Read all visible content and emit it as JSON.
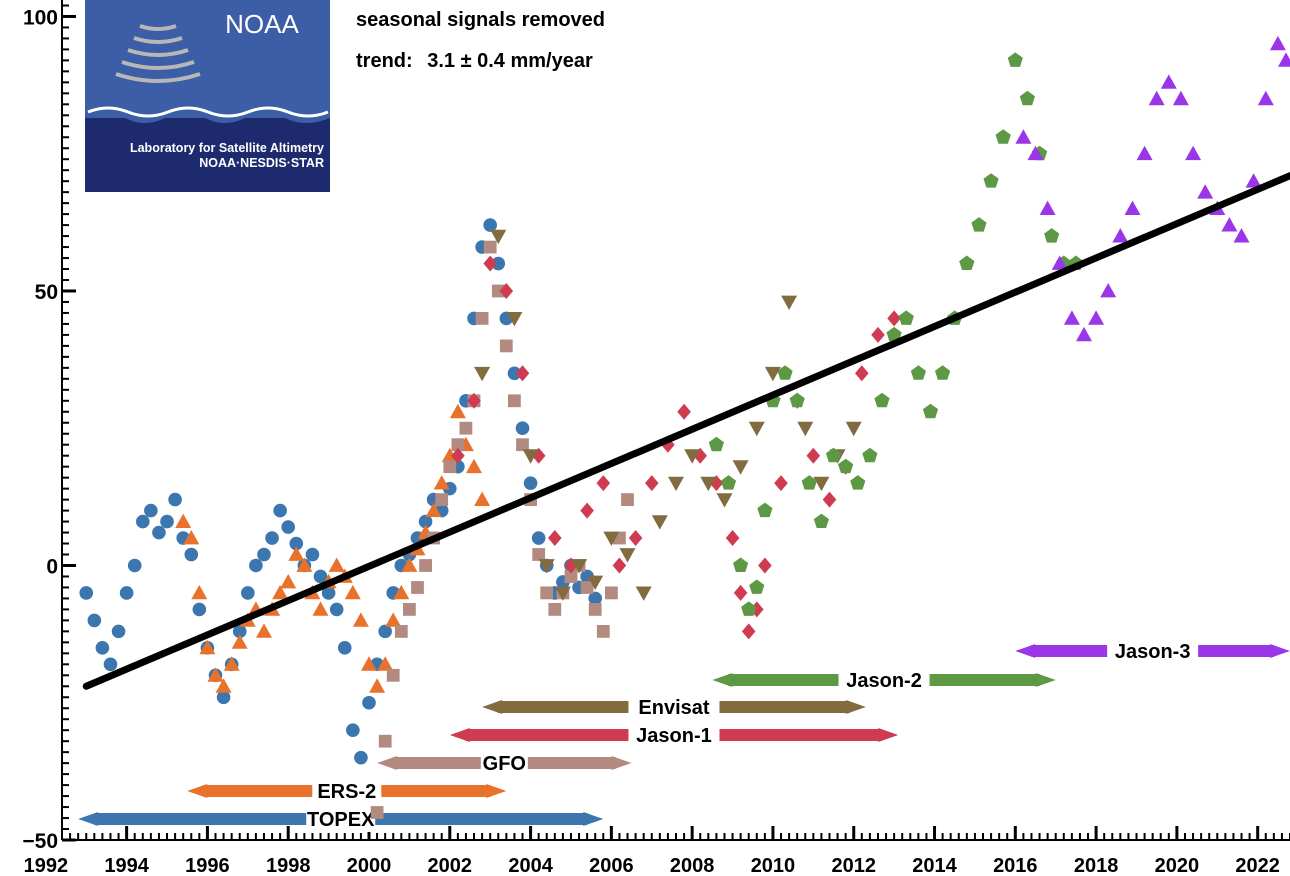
{
  "chart_data": {
    "type": "scatter",
    "title": "",
    "xlabel": "",
    "ylabel": "",
    "xlim": [
      1992.4,
      2022.8
    ],
    "ylim": [
      -50,
      103
    ],
    "x_ticks": [
      "1992",
      "1994",
      "1996",
      "1998",
      "2000",
      "2002",
      "2004",
      "2006",
      "2008",
      "2010",
      "2012",
      "2014",
      "2016",
      "2018",
      "2020",
      "2022"
    ],
    "y_ticks": [
      "−50",
      "0",
      "50",
      "100"
    ],
    "y_tick_values": [
      -50,
      0,
      50,
      100
    ],
    "annotations": {
      "line1": "seasonal signals removed",
      "line2_prefix": "trend:",
      "line2_value": "3.1 ± 0.4 mm/year"
    },
    "logo": {
      "name": "NOAA",
      "org_line1": "Laboratory for Satellite Altimetry",
      "org_line2": "NOAA·NESDIS·STAR"
    },
    "trend_line": {
      "x": [
        1993.0,
        2022.8
      ],
      "y": [
        -22,
        71
      ],
      "color": "#000000"
    },
    "series": [
      {
        "name": "TOPEX",
        "color": "#3b76af",
        "marker": "circle",
        "mission_span": [
          1992.8,
          2005.8
        ],
        "x": [
          1993.0,
          1993.2,
          1993.4,
          1993.6,
          1993.8,
          1994.0,
          1994.2,
          1994.4,
          1994.6,
          1994.8,
          1995.0,
          1995.2,
          1995.4,
          1995.6,
          1995.8,
          1996.0,
          1996.2,
          1996.4,
          1996.6,
          1996.8,
          1997.0,
          1997.2,
          1997.4,
          1997.6,
          1997.8,
          1998.0,
          1998.2,
          1998.4,
          1998.6,
          1998.8,
          1999.0,
          1999.2,
          1999.4,
          1999.6,
          1999.8,
          2000.0,
          2000.2,
          2000.4,
          2000.6,
          2000.8,
          2001.0,
          2001.2,
          2001.4,
          2001.6,
          2001.8,
          2002.0,
          2002.2,
          2002.4,
          2002.6,
          2002.8,
          2003.0,
          2003.2,
          2003.4,
          2003.6,
          2003.8,
          2004.0,
          2004.2,
          2004.4,
          2004.6,
          2004.8,
          2005.0,
          2005.2,
          2005.4,
          2005.6
        ],
        "y": [
          -5,
          -10,
          -15,
          -18,
          -12,
          -5,
          0,
          8,
          10,
          6,
          8,
          12,
          5,
          2,
          -8,
          -15,
          -20,
          -24,
          -18,
          -12,
          -5,
          0,
          2,
          5,
          10,
          7,
          4,
          0,
          2,
          -2,
          -5,
          -8,
          -15,
          -30,
          -35,
          -25,
          -18,
          -12,
          -5,
          0,
          2,
          5,
          8,
          12,
          10,
          14,
          18,
          30,
          45,
          58,
          62,
          55,
          45,
          35,
          25,
          15,
          5,
          0,
          -5,
          -3,
          0,
          -4,
          -2,
          -6
        ]
      },
      {
        "name": "ERS-2",
        "color": "#e8712b",
        "marker": "triangle",
        "mission_span": [
          1995.5,
          2003.4
        ],
        "x": [
          1995.4,
          1995.6,
          1995.8,
          1996.0,
          1996.2,
          1996.4,
          1996.6,
          1996.8,
          1997.0,
          1997.2,
          1997.4,
          1997.6,
          1997.8,
          1998.0,
          1998.2,
          1998.4,
          1998.6,
          1998.8,
          1999.0,
          1999.2,
          1999.4,
          1999.6,
          1999.8,
          2000.0,
          2000.2,
          2000.4,
          2000.6,
          2000.8,
          2001.0,
          2001.2,
          2001.4,
          2001.6,
          2001.8,
          2002.0,
          2002.2,
          2002.4,
          2002.6,
          2002.8
        ],
        "y": [
          8,
          5,
          -5,
          -15,
          -20,
          -22,
          -18,
          -14,
          -10,
          -8,
          -12,
          -8,
          -5,
          -3,
          2,
          0,
          -5,
          -8,
          -3,
          0,
          -2,
          -5,
          -10,
          -18,
          -22,
          -18,
          -10,
          -5,
          0,
          3,
          6,
          10,
          15,
          20,
          28,
          22,
          18,
          12
        ]
      },
      {
        "name": "GFO",
        "color": "#b38a80",
        "marker": "square",
        "mission_span": [
          2000.2,
          2006.5
        ],
        "x": [
          2000.2,
          2000.4,
          2000.6,
          2000.8,
          2001.0,
          2001.2,
          2001.4,
          2001.6,
          2001.8,
          2002.0,
          2002.2,
          2002.4,
          2002.6,
          2002.8,
          2003.0,
          2003.2,
          2003.4,
          2003.6,
          2003.8,
          2004.0,
          2004.2,
          2004.4,
          2004.6,
          2004.8,
          2005.0,
          2005.2,
          2005.4,
          2005.6,
          2005.8,
          2006.0,
          2006.2,
          2006.4
        ],
        "y": [
          -45,
          -32,
          -20,
          -12,
          -8,
          -4,
          0,
          5,
          12,
          18,
          22,
          25,
          30,
          45,
          58,
          50,
          40,
          30,
          22,
          12,
          2,
          -5,
          -8,
          -5,
          -2,
          0,
          -4,
          -8,
          -12,
          -5,
          5,
          12
        ]
      },
      {
        "name": "Jason-1",
        "color": "#cf3b50",
        "marker": "diamond",
        "mission_span": [
          2002.0,
          2013.1
        ],
        "x": [
          2002.2,
          2002.6,
          2003.0,
          2003.4,
          2003.8,
          2004.2,
          2004.6,
          2005.0,
          2005.4,
          2005.8,
          2006.2,
          2006.6,
          2007.0,
          2007.4,
          2007.8,
          2008.2,
          2008.6,
          2009.0,
          2009.2,
          2009.4,
          2009.6,
          2009.8,
          2010.2,
          2010.6,
          2011.0,
          2011.4,
          2011.8,
          2012.2,
          2012.6,
          2013.0
        ],
        "y": [
          20,
          30,
          55,
          50,
          35,
          20,
          5,
          0,
          10,
          15,
          0,
          5,
          15,
          22,
          28,
          20,
          15,
          5,
          -5,
          -12,
          -8,
          0,
          15,
          30,
          20,
          12,
          18,
          35,
          42,
          45
        ]
      },
      {
        "name": "Envisat",
        "color": "#836b40",
        "marker": "triangle-down",
        "mission_span": [
          2002.8,
          2012.3
        ],
        "x": [
          2002.8,
          2003.2,
          2003.6,
          2004.0,
          2004.4,
          2004.8,
          2005.2,
          2005.6,
          2006.0,
          2006.4,
          2006.8,
          2007.2,
          2007.6,
          2008.0,
          2008.4,
          2008.8,
          2009.2,
          2009.6,
          2010.0,
          2010.4,
          2010.8,
          2011.2,
          2011.6,
          2012.0
        ],
        "y": [
          35,
          60,
          45,
          20,
          0,
          -5,
          0,
          -3,
          5,
          2,
          -5,
          8,
          15,
          20,
          15,
          12,
          18,
          25,
          35,
          48,
          25,
          15,
          20,
          25
        ]
      },
      {
        "name": "Jason-2",
        "color": "#5d9944",
        "marker": "pentagon",
        "mission_span": [
          2008.5,
          2017.0
        ],
        "x": [
          2008.6,
          2008.9,
          2009.2,
          2009.4,
          2009.6,
          2009.8,
          2010.0,
          2010.3,
          2010.6,
          2010.9,
          2011.2,
          2011.5,
          2011.8,
          2012.1,
          2012.4,
          2012.7,
          2013.0,
          2013.3,
          2013.6,
          2013.9,
          2014.2,
          2014.5,
          2014.8,
          2015.1,
          2015.4,
          2015.7,
          2016.0,
          2016.3,
          2016.6,
          2016.9,
          2017.2,
          2017.5
        ],
        "y": [
          22,
          15,
          0,
          -8,
          -4,
          10,
          30,
          35,
          30,
          15,
          8,
          20,
          18,
          15,
          20,
          30,
          42,
          45,
          35,
          28,
          35,
          45,
          55,
          62,
          70,
          78,
          92,
          85,
          75,
          60,
          55,
          55
        ]
      },
      {
        "name": "Jason-3",
        "color": "#9a35e8",
        "marker": "triangle",
        "mission_span": [
          2016.0,
          2022.8
        ],
        "x": [
          2016.2,
          2016.5,
          2016.8,
          2017.1,
          2017.4,
          2017.7,
          2018.0,
          2018.3,
          2018.6,
          2018.9,
          2019.2,
          2019.5,
          2019.8,
          2020.1,
          2020.4,
          2020.7,
          2021.0,
          2021.3,
          2021.6,
          2021.9,
          2022.2,
          2022.5,
          2022.7
        ],
        "y": [
          78,
          75,
          65,
          55,
          45,
          42,
          45,
          50,
          60,
          65,
          75,
          85,
          88,
          85,
          75,
          68,
          65,
          62,
          60,
          70,
          85,
          95,
          92
        ]
      }
    ]
  }
}
